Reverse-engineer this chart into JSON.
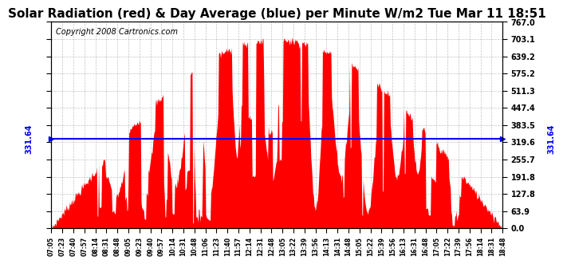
{
  "title": "Solar Radiation (red) & Day Average (blue) per Minute W/m2 Tue Mar 11 18:51",
  "copyright": "Copyright 2008 Cartronics.com",
  "y_min": 0.0,
  "y_max": 767.0,
  "y_ticks": [
    0.0,
    63.9,
    127.8,
    191.8,
    255.7,
    319.6,
    383.5,
    447.4,
    511.3,
    575.2,
    639.2,
    703.1,
    767.0
  ],
  "day_average": 331.64,
  "bar_color": "#FF0000",
  "avg_line_color": "#0000FF",
  "background_color": "#FFFFFF",
  "grid_color": "#AAAAAA",
  "title_fontsize": 11,
  "copyright_fontsize": 7,
  "avg_label": "331.64",
  "x_tick_labels": [
    "07:05",
    "07:23",
    "07:40",
    "07:57",
    "08:14",
    "08:31",
    "08:48",
    "09:05",
    "09:23",
    "09:40",
    "09:57",
    "10:14",
    "10:31",
    "10:48",
    "11:06",
    "11:23",
    "11:40",
    "11:57",
    "12:14",
    "12:31",
    "12:48",
    "13:05",
    "13:22",
    "13:39",
    "13:56",
    "14:13",
    "14:31",
    "14:48",
    "15:05",
    "15:22",
    "15:39",
    "15:56",
    "16:13",
    "16:31",
    "16:48",
    "17:05",
    "17:22",
    "17:39",
    "17:56",
    "18:14",
    "18:31",
    "18:48"
  ]
}
